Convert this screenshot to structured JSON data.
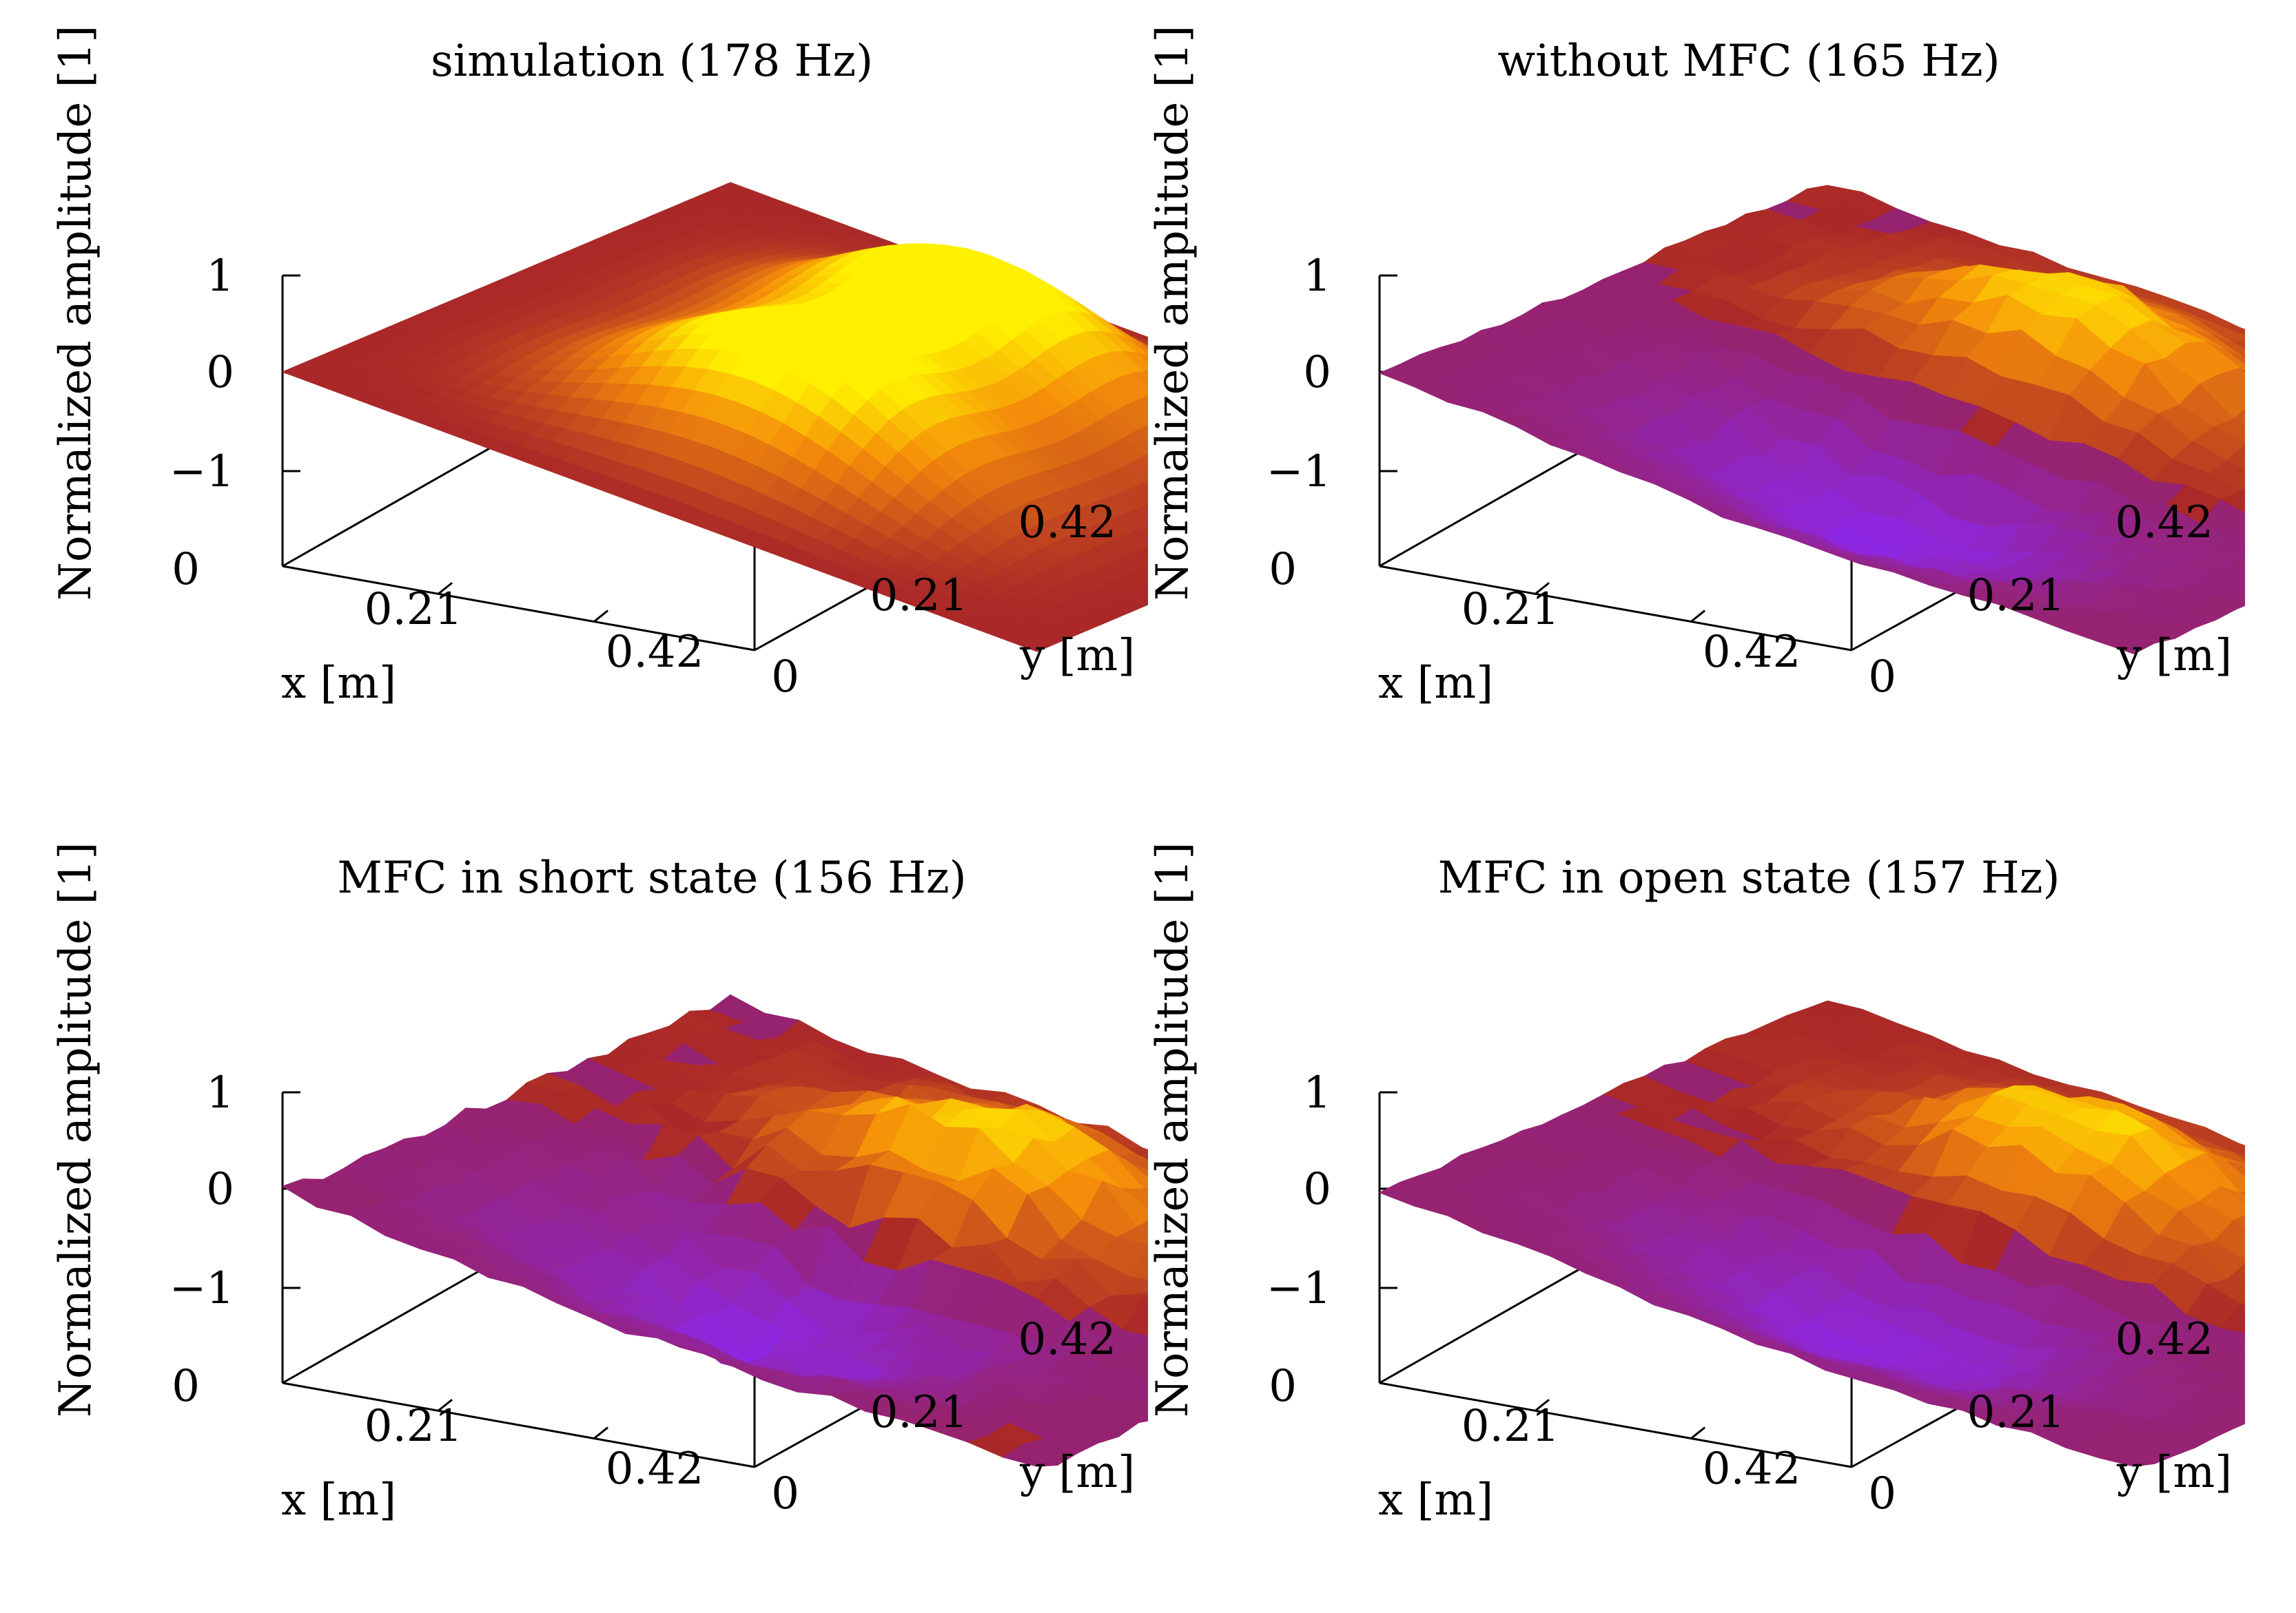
{
  "chart_data": [
    {
      "type": "surface",
      "title": "simulation (178 Hz)",
      "xlabel": "x [m]",
      "ylabel": "y [m]",
      "zlabel": "Normalized amplitude [1]",
      "x_ticks": [
        "0.21",
        "0.42"
      ],
      "y_ticks": [
        "0",
        "0.21",
        "0.42"
      ],
      "z_ticks": [
        "1",
        "0",
        "−1"
      ],
      "corner_tick": "0",
      "xlim": [
        0,
        0.6
      ],
      "ylim": [
        0,
        0.42
      ],
      "zlim": [
        -1,
        1
      ],
      "peak": {
        "x": 0.3,
        "y": 0.315,
        "z": 1.0
      },
      "trough": {
        "x": 0.3,
        "y": 0.105,
        "z": -1.0
      }
    },
    {
      "type": "surface",
      "title": "without MFC (165 Hz)",
      "xlabel": "x [m]",
      "ylabel": "y [m]",
      "zlabel": "Normalized amplitude [1]",
      "x_ticks": [
        "0.21",
        "0.42"
      ],
      "y_ticks": [
        "0",
        "0.21",
        "0.42"
      ],
      "z_ticks": [
        "1",
        "0",
        "−1"
      ],
      "corner_tick": "0",
      "xlim": [
        0,
        0.6
      ],
      "ylim": [
        0,
        0.42
      ],
      "zlim": [
        -1,
        1
      ],
      "peak": {
        "x": 0.3,
        "y": 0.3,
        "z": 1.0
      },
      "trough": {
        "x": 0.3,
        "y": 0.1,
        "z": -0.9
      }
    },
    {
      "type": "surface",
      "title": "MFC in short state (156 Hz)",
      "xlabel": "x [m]",
      "ylabel": "y [m]",
      "zlabel": "Normalized amplitude [1]",
      "x_ticks": [
        "0.21",
        "0.42"
      ],
      "y_ticks": [
        "0",
        "0.21",
        "0.42"
      ],
      "z_ticks": [
        "1",
        "0",
        "−1"
      ],
      "corner_tick": "0",
      "xlim": [
        0,
        0.6
      ],
      "ylim": [
        0,
        0.42
      ],
      "zlim": [
        -1,
        1
      ],
      "peak": {
        "x": 0.32,
        "y": 0.3,
        "z": 1.0
      },
      "trough": {
        "x": 0.28,
        "y": 0.1,
        "z": -0.85
      }
    },
    {
      "type": "surface",
      "title": "MFC in open state (157 Hz)",
      "xlabel": "x [m]",
      "ylabel": "y [m]",
      "zlabel": "Normalized amplitude [1]",
      "x_ticks": [
        "0.21",
        "0.42"
      ],
      "y_ticks": [
        "0",
        "0.21",
        "0.42"
      ],
      "z_ticks": [
        "1",
        "0",
        "−1"
      ],
      "corner_tick": "0",
      "xlim": [
        0,
        0.6
      ],
      "ylim": [
        0,
        0.42
      ],
      "zlim": [
        -1,
        1
      ],
      "peak": {
        "x": 0.31,
        "y": 0.3,
        "z": 1.0
      },
      "trough": {
        "x": 0.3,
        "y": 0.1,
        "z": -0.85
      }
    }
  ]
}
